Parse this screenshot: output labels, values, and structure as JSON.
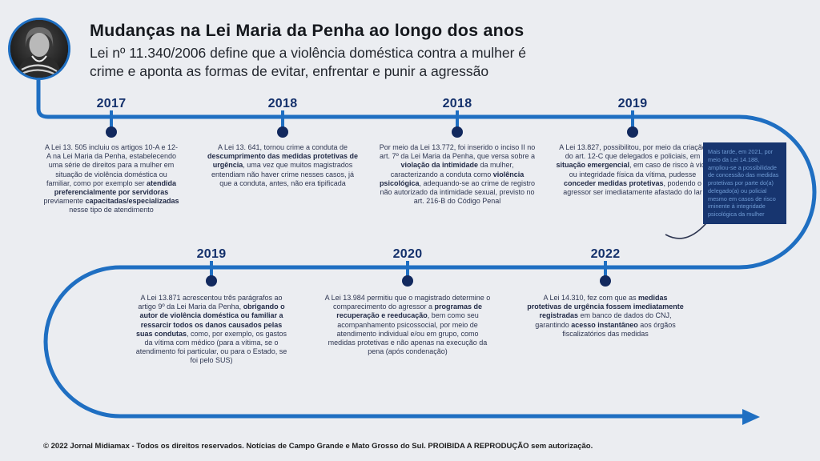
{
  "header": {
    "title": "Mudanças na Lei Maria da Penha ao longo dos anos",
    "subtitle": "Lei nº 11.340/2006 define que a violência doméstica contra a mulher é crime e aponta as formas de evitar, enfrentar e punir a agressão",
    "avatar_alt": "Retrato de Maria da Penha"
  },
  "colors": {
    "background": "#ebedf1",
    "line": "#1f6fc2",
    "dot": "#12295e",
    "year": "#13306b",
    "body": "#2e3651",
    "body_bold": "#222b47",
    "callout_bg": "#17356f",
    "callout_text": "#6f9bd4"
  },
  "timeline": {
    "top_row": [
      {
        "year": "2017",
        "segments": [
          {
            "t": "A Lei 13. 505 incluiu os artigos 10-A e 12-A na Lei Maria da Penha, estabelecendo uma série de direitos para a mulher em situação de violência doméstica ou familiar, como por exemplo ser ",
            "b": false
          },
          {
            "t": "atendida preferencialmente por servidoras",
            "b": true
          },
          {
            "t": " previamente ",
            "b": false
          },
          {
            "t": "capacitadas/especializadas",
            "b": true
          },
          {
            "t": " nesse tipo de atendimento",
            "b": false
          }
        ]
      },
      {
        "year": "2018",
        "segments": [
          {
            "t": "A Lei 13. 641, tornou crime a conduta de ",
            "b": false
          },
          {
            "t": "descumprimento das medidas protetivas de urgência",
            "b": true
          },
          {
            "t": ", uma vez que muitos magistrados entendiam não haver crime nesses casos, já que a conduta, antes, não era tipificada",
            "b": false
          }
        ]
      },
      {
        "year": "2018",
        "segments": [
          {
            "t": "Por meio da Lei 13.772, foi inserido o inciso II no art. 7º da Lei Maria da Penha, que versa sobre a ",
            "b": false
          },
          {
            "t": "violação da intimidade",
            "b": true
          },
          {
            "t": " da mulher, caracterizando a conduta como ",
            "b": false
          },
          {
            "t": "violência psicológica",
            "b": true
          },
          {
            "t": ", adequando-se ao crime de registro não autorizado da intimidade sexual, previsto no art. 216-B do Código Penal",
            "b": false
          }
        ]
      },
      {
        "year": "2019",
        "segments": [
          {
            "t": "A Lei 13.827, possibilitou, por meio da criação do art. 12-C que delegados e policiais, em ",
            "b": false
          },
          {
            "t": "situação emergencial",
            "b": true
          },
          {
            "t": ", em caso de risco à vida ou integridade física da vítima, pudesse ",
            "b": false
          },
          {
            "t": "conceder medidas protetivas",
            "b": true
          },
          {
            "t": ", podendo o agressor ser imediatamente afastado do lar",
            "b": false
          }
        ]
      }
    ],
    "bottom_row": [
      {
        "year": "2019",
        "segments": [
          {
            "t": "A Lei 13.871 acrescentou três parágrafos ao artigo 9º da Lei Maria da Penha, ",
            "b": false
          },
          {
            "t": "obrigando o autor de violência doméstica ou familiar a ressarcir todos os danos causados pelas suas condutas",
            "b": true
          },
          {
            "t": ", como, por exemplo, os gastos da vítima com médico (para a vítima, se o atendimento foi particular, ou para o Estado, se foi pelo SUS)",
            "b": false
          }
        ]
      },
      {
        "year": "2020",
        "segments": [
          {
            "t": "A Lei 13.984 permitiu que o magistrado determine o comparecimento do agressor a ",
            "b": false
          },
          {
            "t": "programas de recuperação e reeducação",
            "b": true
          },
          {
            "t": ", bem como seu acompanhamento psicossocial, por meio de atendimento individual e/ou em grupo, como medidas protetivas e não apenas na execução da pena (após condenação)",
            "b": false
          }
        ]
      },
      {
        "year": "2022",
        "segments": [
          {
            "t": "A Lei 14.310, fez com que as ",
            "b": false
          },
          {
            "t": "medidas protetivas de urgência fossem imediatamente registradas",
            "b": true
          },
          {
            "t": " em banco de dados do CNJ, garantindo ",
            "b": false
          },
          {
            "t": "acesso instantâneo",
            "b": true
          },
          {
            "t": " aos órgãos fiscalizatórios das medidas",
            "b": false
          }
        ]
      }
    ],
    "callout": {
      "text": "Mais tarde, em 2021, por meio da Lei 14.188, ampliou-se a possibilidade de concessão das medidas protetivas por parte do(a) delegado(a) ou policial mesmo em casos de risco iminente à integridade psicológica da mulher"
    }
  },
  "footer": {
    "text": "© 2022 Jornal Midiamax - Todos os direitos reservados. Notícias de Campo Grande e Mato Grosso do Sul. PROIBIDA A REPRODUÇÃO sem autorização."
  }
}
